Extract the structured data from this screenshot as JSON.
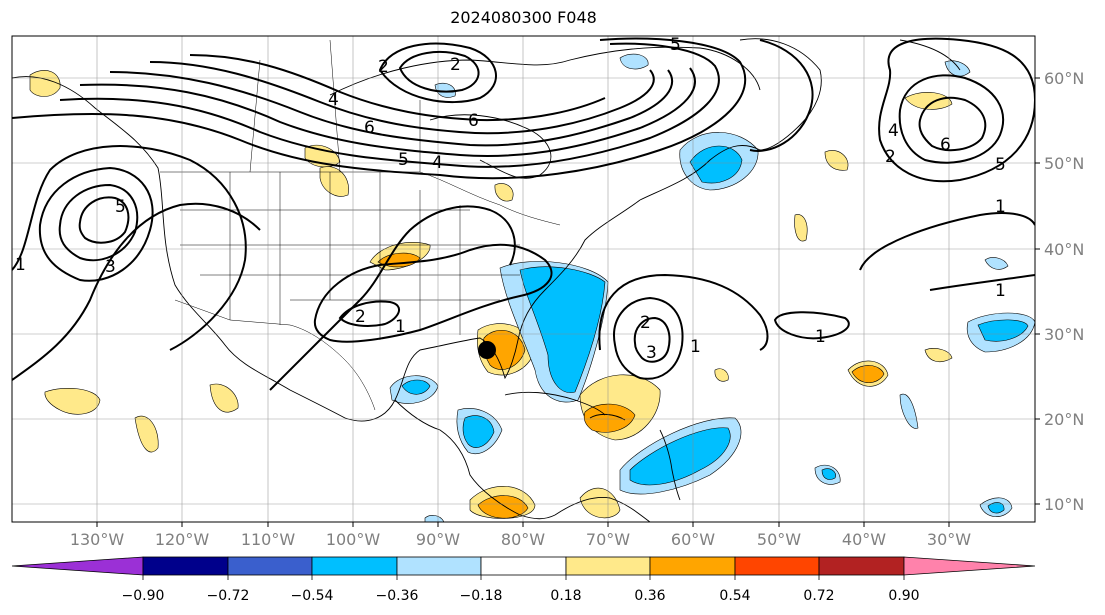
{
  "title": "2024080300 F048",
  "lon_labels": [
    "130°W",
    "120°W",
    "110°W",
    "100°W",
    "90°W",
    "80°W",
    "70°W",
    "60°W",
    "50°W",
    "40°W",
    "30°W"
  ],
  "lat_labels": [
    "60°N",
    "50°N",
    "40°N",
    "30°N",
    "20°N",
    "10°N"
  ],
  "contour_labels": [
    "1",
    "2",
    "3",
    "4",
    "5",
    "6"
  ],
  "colorbar": {
    "tick_labels": [
      "−0.90",
      "−0.72",
      "−0.54",
      "−0.36",
      "−0.18",
      "0.18",
      "0.36",
      "0.54",
      "0.72",
      "0.90"
    ],
    "colors": [
      "#9b30d6",
      "#00008b",
      "#3a5fcd",
      "#00bfff",
      "#b0e2ff",
      "#ffffff",
      "#ffe98a",
      "#ffa500",
      "#ff4500",
      "#b22222",
      "#ff82ab"
    ]
  },
  "marker": "storm-position-dot"
}
